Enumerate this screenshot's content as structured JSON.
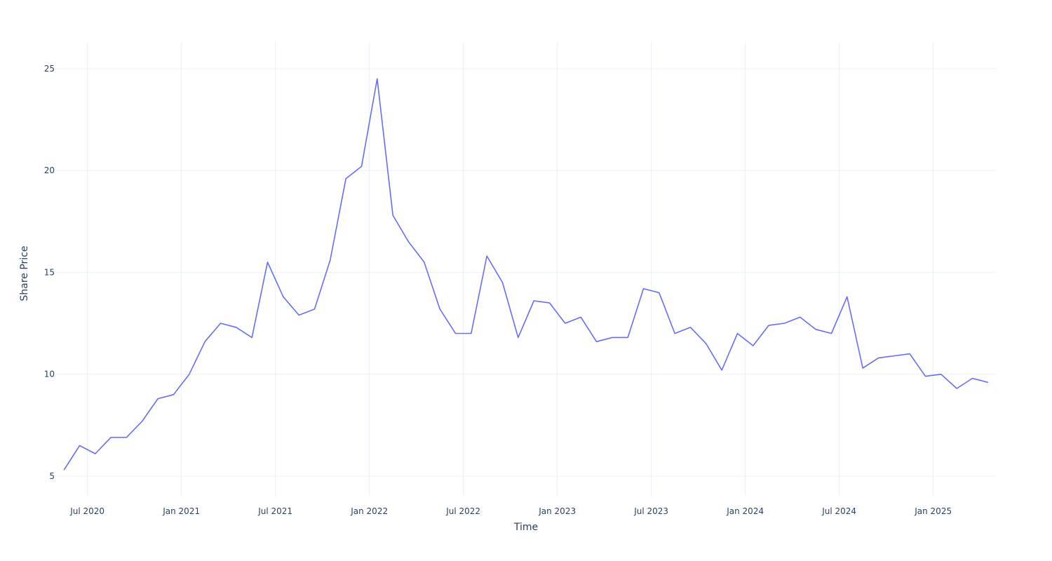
{
  "chart_data": {
    "type": "line",
    "x_title": "Time",
    "y_title": "Share Price",
    "x": [
      "2020-05",
      "2020-06",
      "2020-07",
      "2020-08",
      "2020-09",
      "2020-10",
      "2020-11",
      "2020-12",
      "2021-01",
      "2021-02",
      "2021-03",
      "2021-04",
      "2021-05",
      "2021-06",
      "2021-07",
      "2021-08",
      "2021-09",
      "2021-10",
      "2021-11",
      "2021-12",
      "2022-01",
      "2022-02",
      "2022-03",
      "2022-04",
      "2022-05",
      "2022-06",
      "2022-07",
      "2022-08",
      "2022-09",
      "2022-10",
      "2022-11",
      "2022-12",
      "2023-01",
      "2023-02",
      "2023-03",
      "2023-04",
      "2023-05",
      "2023-06",
      "2023-07",
      "2023-08",
      "2023-09",
      "2023-10",
      "2023-11",
      "2023-12",
      "2024-01",
      "2024-02",
      "2024-03",
      "2024-04",
      "2024-05",
      "2024-06",
      "2024-07",
      "2024-08",
      "2024-09",
      "2024-10",
      "2024-11",
      "2024-12",
      "2025-01",
      "2025-02",
      "2025-03",
      "2025-04"
    ],
    "series": [
      {
        "name": "Share Price",
        "color": "#636efa",
        "values": [
          5.3,
          6.5,
          6.1,
          6.9,
          6.9,
          7.7,
          8.8,
          9.0,
          10.0,
          11.6,
          12.5,
          12.3,
          11.8,
          15.5,
          13.8,
          12.9,
          13.2,
          15.6,
          19.6,
          20.2,
          24.5,
          17.8,
          16.5,
          15.5,
          13.2,
          12.0,
          12.0,
          15.8,
          14.5,
          11.8,
          13.6,
          13.5,
          12.5,
          12.8,
          11.6,
          11.8,
          11.8,
          14.2,
          14.0,
          12.0,
          12.3,
          11.5,
          10.2,
          12.0,
          11.4,
          12.4,
          12.5,
          12.8,
          12.2,
          12.0,
          13.8,
          10.3,
          10.8,
          10.9,
          11.0,
          9.9,
          10.0,
          9.3,
          9.8,
          9.6
        ]
      }
    ],
    "xlim": [
      "2020-05",
      "2025-05"
    ],
    "xticks": [
      {
        "value": "2020-07",
        "label": "Jul 2020"
      },
      {
        "value": "2021-01",
        "label": "Jan 2021"
      },
      {
        "value": "2021-07",
        "label": "Jul 2021"
      },
      {
        "value": "2022-01",
        "label": "Jan 2022"
      },
      {
        "value": "2022-07",
        "label": "Jul 2022"
      },
      {
        "value": "2023-01",
        "label": "Jan 2023"
      },
      {
        "value": "2023-07",
        "label": "Jul 2023"
      },
      {
        "value": "2024-01",
        "label": "Jan 2024"
      },
      {
        "value": "2024-07",
        "label": "Jul 2024"
      },
      {
        "value": "2025-01",
        "label": "Jan 2025"
      }
    ],
    "ylim": [
      4,
      26.3
    ],
    "yticks": [
      5,
      10,
      15,
      20,
      25
    ],
    "grid": true,
    "grid_color": "#ebf0f8"
  }
}
